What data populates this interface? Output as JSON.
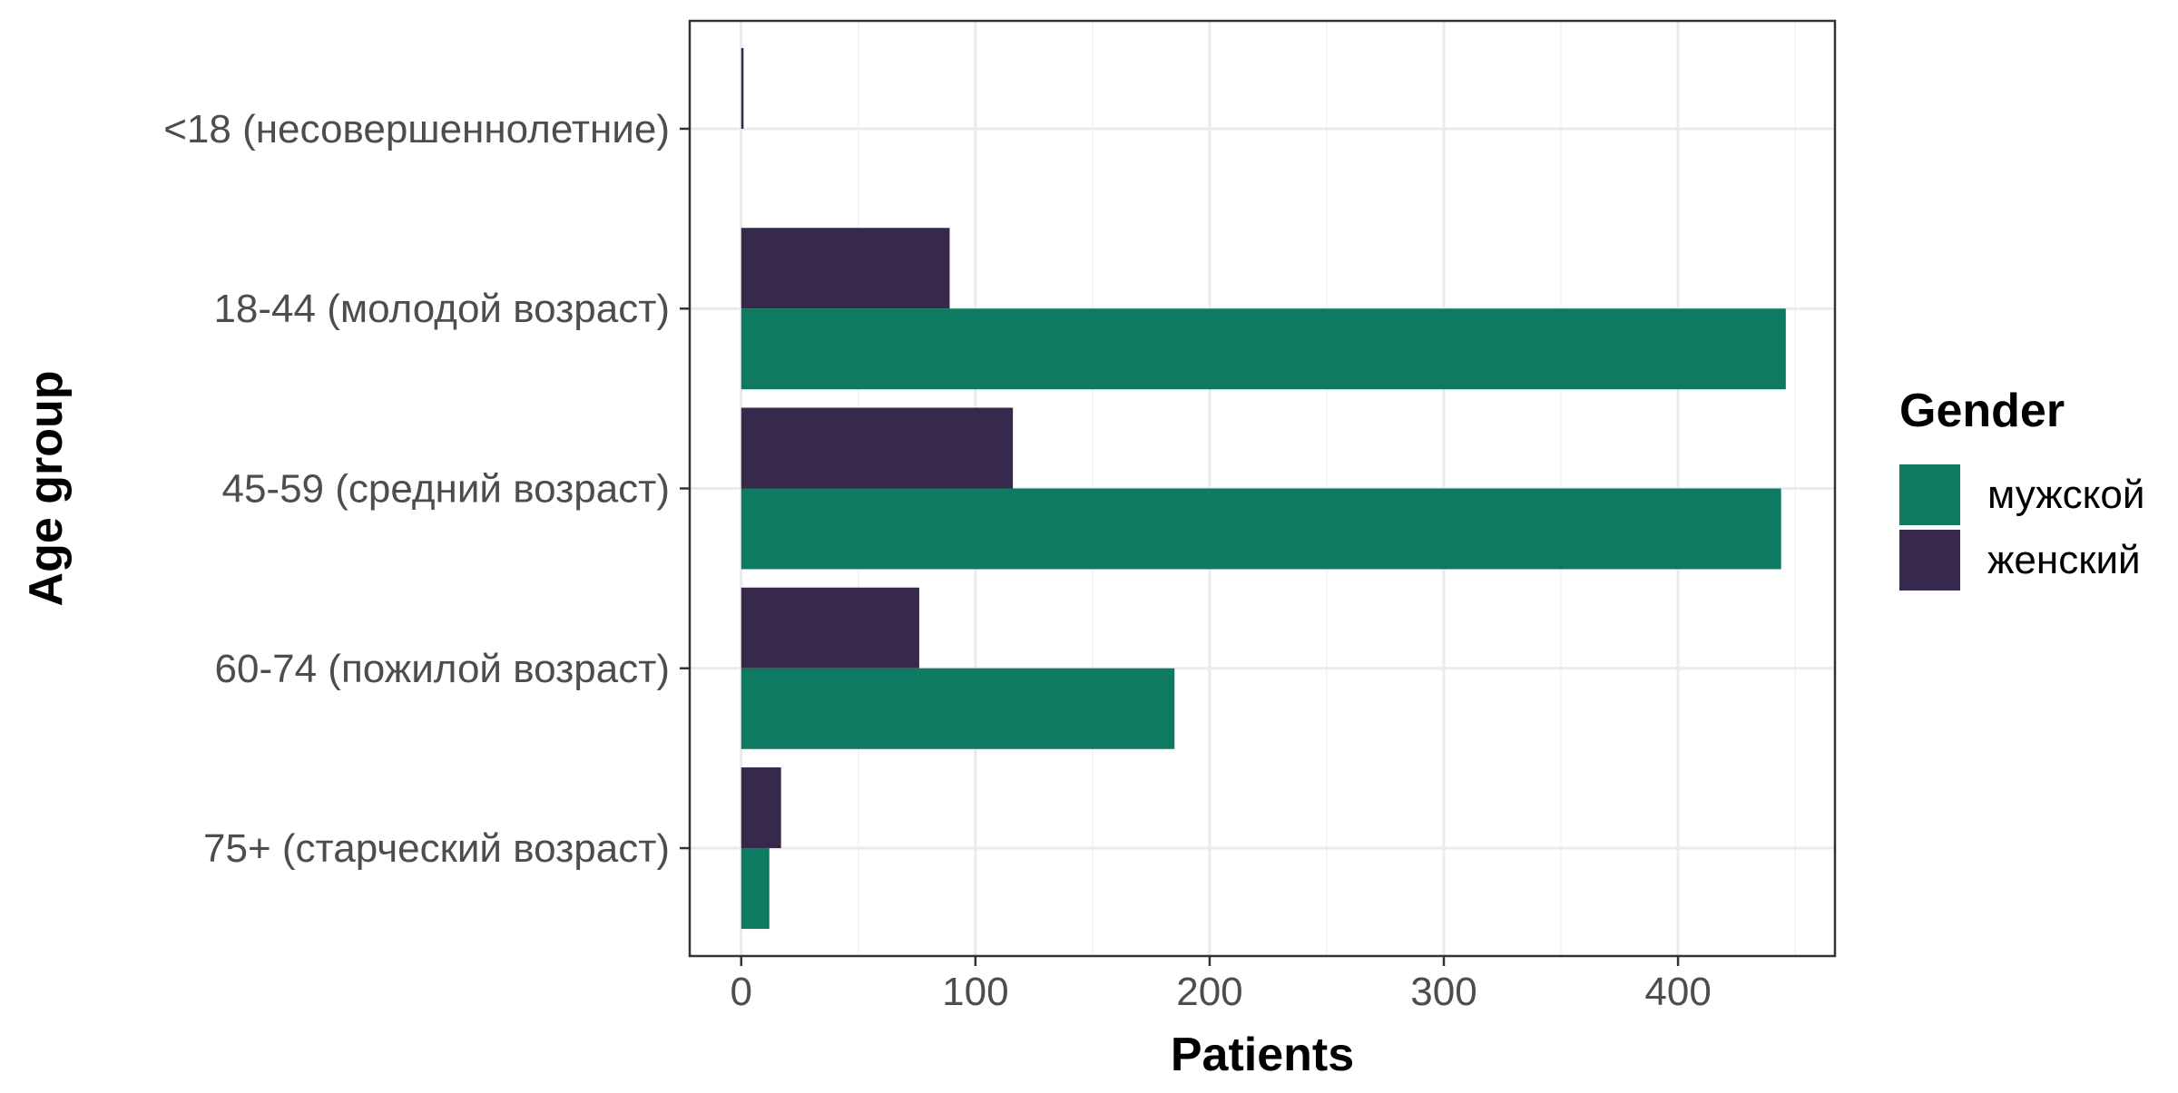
{
  "chart_data": {
    "type": "bar",
    "orientation": "horizontal",
    "title": "",
    "xlabel": "Patients",
    "ylabel": "Age group",
    "xlim": [
      -22,
      467
    ],
    "x_ticks": [
      0,
      100,
      200,
      300,
      400
    ],
    "grid": true,
    "categories": [
      "<18 (несовершеннолетние)",
      "18-44 (молодой возраст)",
      "45-59 (средний возраст)",
      "60-74 (пожилой возраст)",
      "75+ (старческий возраст)"
    ],
    "legend": {
      "title": "Gender",
      "position": "right"
    },
    "series": [
      {
        "name": "мужской",
        "color": "#0E7A62",
        "values": [
          0,
          446,
          444,
          185,
          12
        ]
      },
      {
        "name": "женский",
        "color": "#37294B",
        "values": [
          1,
          89,
          116,
          76,
          17
        ]
      }
    ]
  }
}
